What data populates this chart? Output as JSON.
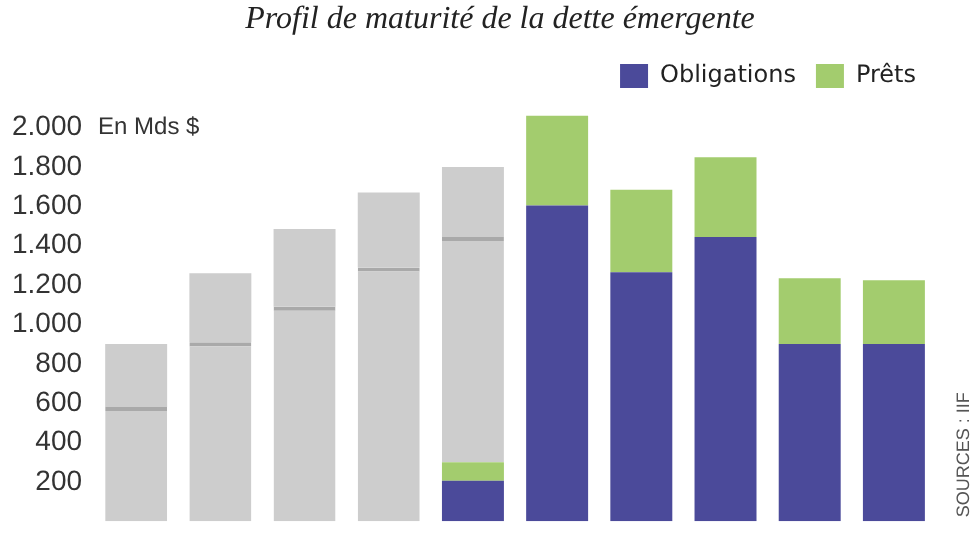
{
  "chart_data": {
    "type": "bar",
    "title": "Profil de maturité de la dette émergente",
    "ylabel": "En Mds $",
    "categories": [
      null,
      null,
      null,
      null,
      null,
      null,
      null,
      null,
      null,
      null
    ],
    "stacked": true,
    "series": [
      {
        "name": "Obligations",
        "color": "#4b4a9a",
        "values": [
          null,
          null,
          null,
          null,
          205,
          1605,
          1265,
          1445,
          900,
          900
        ]
      },
      {
        "name": "Prêts",
        "color": "#a3cc6e",
        "values": [
          null,
          null,
          null,
          null,
          95,
          455,
          420,
          405,
          335,
          325
        ]
      },
      {
        "color": "#cdcdcd",
        "values": [
          580,
          910,
          1090,
          1290,
          1145,
          null,
          null,
          null,
          null,
          null
        ]
      },
      {
        "color": "#cdcdcd",
        "values": [
          320,
          350,
          395,
          380,
          355,
          null,
          null,
          null,
          null,
          null
        ]
      }
    ],
    "ylim": [
      0,
      2100
    ],
    "yticks": [
      {
        "value": 200,
        "label": "200"
      },
      {
        "value": 400,
        "label": "400"
      },
      {
        "value": 600,
        "label": "600"
      },
      {
        "value": 800,
        "label": "800"
      },
      {
        "value": 1000,
        "label": "1.000"
      },
      {
        "value": 1200,
        "label": "1.200"
      },
      {
        "value": 1400,
        "label": "1.400"
      },
      {
        "value": 1600,
        "label": "1.600"
      },
      {
        "value": 1800,
        "label": "1.800"
      },
      {
        "value": 2000,
        "label": "2.000"
      }
    ],
    "grid": false,
    "legend": "top right",
    "tick_labels": "y",
    "annotations": [
      "SOURCES : IIF"
    ]
  }
}
